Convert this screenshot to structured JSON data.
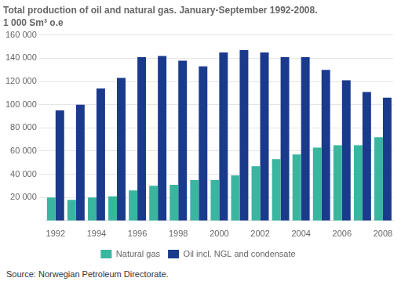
{
  "chart_data": {
    "type": "bar",
    "title": "Total production of oil and natural gas. January-September 1992-2008.",
    "subtitle": "1 000 Sm³ o.e",
    "source": "Source: Norwegian Petroleum Directorate.",
    "categories": [
      "1992",
      null,
      "1994",
      null,
      "1996",
      null,
      "1998",
      null,
      "2000",
      null,
      "2002",
      null,
      "2004",
      null,
      "2006",
      null,
      "2008"
    ],
    "series": [
      {
        "name": "Natural gas",
        "color": "#3ab5a0",
        "values": [
          20000,
          18000,
          20000,
          21000,
          26000,
          30000,
          31000,
          35000,
          35000,
          39000,
          47000,
          53000,
          57000,
          63000,
          65000,
          65000,
          72000
        ]
      },
      {
        "name": "Oil incl. NGL and condensate",
        "color": "#1a3a8c",
        "values": [
          95000,
          100000,
          114000,
          123000,
          141000,
          142000,
          138000,
          133000,
          145000,
          147000,
          145000,
          141000,
          141000,
          130000,
          121000,
          111000,
          106000
        ]
      }
    ],
    "ylim": [
      0,
      160000
    ],
    "yticks": [
      {
        "value": 20000,
        "label": "20 000"
      },
      {
        "value": 40000,
        "label": "40 000"
      },
      {
        "value": 60000,
        "label": "60 000"
      },
      {
        "value": 80000,
        "label": "80 000"
      },
      {
        "value": 100000,
        "label": "100 000"
      },
      {
        "value": 120000,
        "label": "120 000"
      },
      {
        "value": 140000,
        "label": "140 000"
      },
      {
        "value": 160000,
        "label": "160 000"
      }
    ],
    "grid": true,
    "legend": "bottom"
  }
}
